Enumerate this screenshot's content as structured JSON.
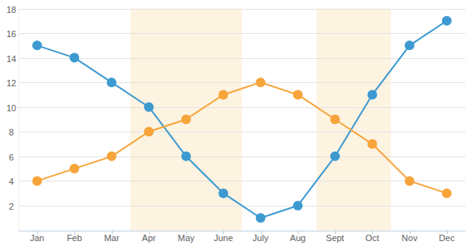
{
  "chart_data": {
    "type": "line",
    "categories": [
      "Jan",
      "Feb",
      "Mar",
      "Apr",
      "May",
      "June",
      "July",
      "Aug",
      "Sept",
      "Oct",
      "Nov",
      "Dec"
    ],
    "series": [
      {
        "color": "#3d9ad1",
        "values": [
          15,
          14,
          12,
          10,
          6,
          3,
          1,
          2,
          6,
          11,
          15,
          17
        ]
      },
      {
        "color": "#f7a43a",
        "values": [
          4,
          5,
          6,
          8,
          9,
          11,
          12,
          11,
          9,
          7,
          4,
          3
        ]
      }
    ],
    "bands": [
      [
        "Apr",
        "June"
      ],
      [
        "Sept",
        "Oct"
      ]
    ],
    "ylim": [
      0,
      18
    ],
    "yticks": [
      2,
      4,
      6,
      8,
      10,
      12,
      14,
      16,
      18
    ],
    "grid": true,
    "marker": "circle"
  }
}
